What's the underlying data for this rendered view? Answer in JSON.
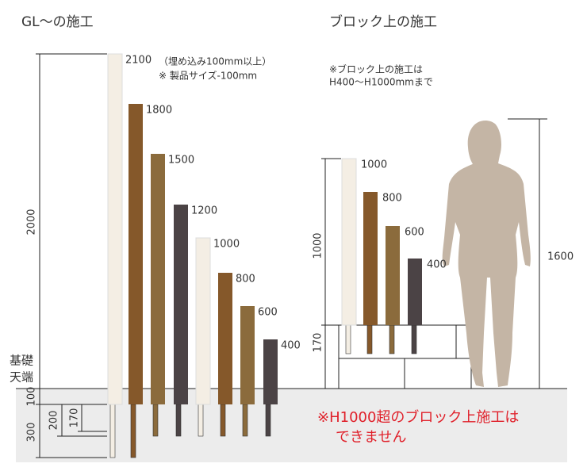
{
  "header": {
    "left_title": "GL〜の施工",
    "right_title": "ブロック上の施工"
  },
  "left": {
    "notes": [
      "（埋め込み100mm以上）",
      "※ 製品サイズ-100mm"
    ],
    "posts": [
      "2100",
      "1800",
      "1500",
      "1200",
      "1000",
      "800",
      "600",
      "400"
    ],
    "dimension": "2000",
    "base_label": [
      "基礎",
      "天端"
    ],
    "below": [
      "100",
      "300",
      "200",
      "170"
    ]
  },
  "right": {
    "notes": [
      "※ブロック上の施工は",
      "H400〜H1000mmまで"
    ],
    "posts": [
      "1000",
      "800",
      "600",
      "400"
    ],
    "dimensions": [
      "1000",
      "170"
    ],
    "person_height": "1600",
    "warning": [
      "※H1000超のブロック上施工は",
      "できません"
    ]
  }
}
